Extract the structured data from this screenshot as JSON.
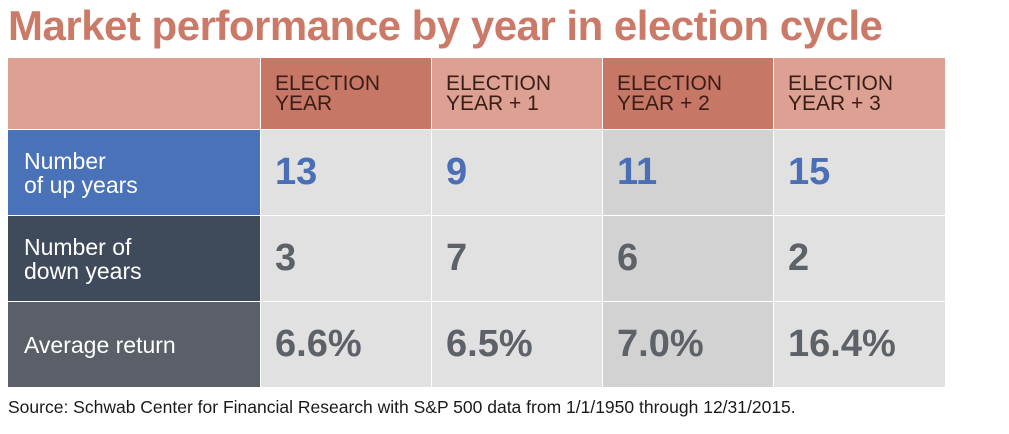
{
  "title": "Market performance by year in election cycle",
  "source": "Source: Schwab Center for Financial Research with S&P 500 data from 1/1/1950 through 12/31/2015.",
  "chart_data": {
    "type": "table",
    "columns": [
      "ELECTION\nYEAR",
      "ELECTION\nYEAR + 1",
      "ELECTION\nYEAR + 2",
      "ELECTION\nYEAR + 3"
    ],
    "rows": [
      {
        "label": "Number\nof up years",
        "values": [
          "13",
          "9",
          "11",
          "15"
        ]
      },
      {
        "label": "Number of\ndown years",
        "values": [
          "3",
          "7",
          "6",
          "2"
        ]
      },
      {
        "label": "Average return",
        "values": [
          "6.6%",
          "6.5%",
          "7.0%",
          "16.4%"
        ]
      }
    ]
  },
  "colors": {
    "title": "#cc7a68",
    "header_dark": "#c77766",
    "header_light": "#dda193",
    "up_years_label": "#4a72b8",
    "down_years_label": "#3f4b5b",
    "avg_return_label": "#5a5f68",
    "value_blue": "#4b6fb5",
    "value_gray": "#5d6168"
  }
}
